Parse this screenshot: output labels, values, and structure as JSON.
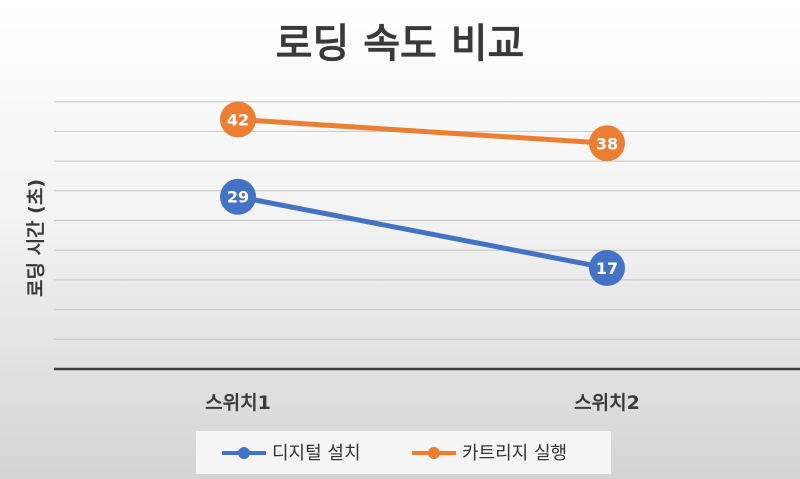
{
  "chart_data": {
    "type": "line",
    "title": "로딩 속도 비교",
    "ylabel": "로딩 시간 (초)",
    "xlabel": "",
    "categories": [
      "스위치1",
      "스위치2"
    ],
    "ylim": [
      0,
      50
    ],
    "y_gridline_step": 5,
    "grid": true,
    "y_tick_labels_shown": false,
    "legend_position": "bottom",
    "series": [
      {
        "name": "디지털 설치",
        "values": [
          29,
          17
        ],
        "color": "#4472C4"
      },
      {
        "name": "카트리지 실행",
        "values": [
          42,
          38
        ],
        "color": "#ED7D31"
      }
    ]
  }
}
